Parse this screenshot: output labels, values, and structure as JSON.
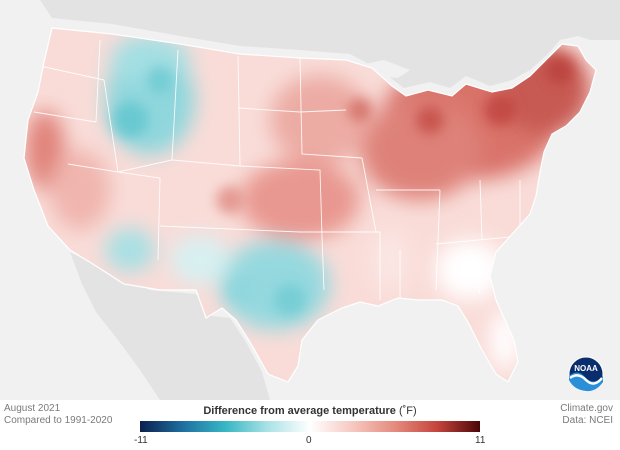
{
  "map": {
    "date_label": "August 2021",
    "baseline_label": "Compared to 1991-2020",
    "source_site": "Climate.gov",
    "data_credit": "Data: NCEI",
    "logo_text": "NOAA"
  },
  "legend": {
    "title": "Difference from average temperature",
    "unit": "(˚F)",
    "min_label": "-11",
    "mid_label": "0",
    "max_label": "11",
    "colors": [
      "#0b1f4d",
      "#1e6fa0",
      "#36b6c4",
      "#a9e2e6",
      "#ffffff",
      "#f6c8c1",
      "#e58a7d",
      "#c5443c",
      "#4a0608"
    ]
  },
  "colors": {
    "background": "#f1f1f1",
    "land_neighbor": "#e3e3e3",
    "warm": "#d9736a",
    "cool": "#7fd3da"
  }
}
